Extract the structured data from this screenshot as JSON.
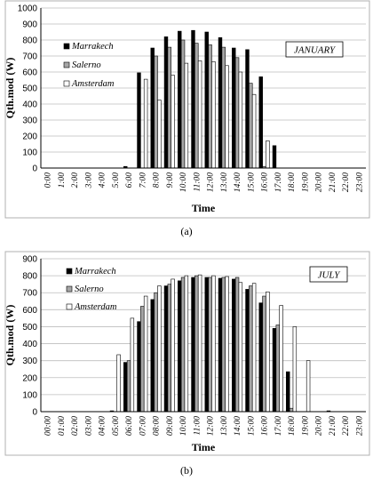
{
  "chart_data": [
    {
      "type": "bar",
      "ylabel": "Qth.mod (W)",
      "xlabel": "Time",
      "ylim": [
        0,
        1000
      ],
      "yticks": [
        0,
        100,
        200,
        300,
        400,
        500,
        600,
        700,
        800,
        900,
        1000
      ],
      "annotation": "JANUARY",
      "legend_position": "top-left",
      "caption": "(a)",
      "categories": [
        "0:00",
        "1:00",
        "2:00",
        "3:00",
        "4:00",
        "5:00",
        "6:00",
        "7:00",
        "8:00",
        "9:00",
        "10:00",
        "11:00",
        "12:00",
        "13:00",
        "14:00",
        "15:00",
        "16:00",
        "17:00",
        "18:00",
        "19:00",
        "20:00",
        "21:00",
        "22:00",
        "23:00"
      ],
      "series": [
        {
          "name": "Marrakech",
          "color": "#000000",
          "values": [
            0,
            0,
            0,
            0,
            0,
            0,
            10,
            595,
            750,
            820,
            855,
            860,
            850,
            815,
            750,
            740,
            570,
            140,
            0,
            0,
            0,
            0,
            0,
            0
          ]
        },
        {
          "name": "Salerno",
          "color": "#a6a6a6",
          "values": [
            0,
            0,
            0,
            0,
            0,
            0,
            0,
            0,
            700,
            755,
            800,
            780,
            770,
            755,
            690,
            530,
            10,
            0,
            0,
            0,
            0,
            0,
            0,
            0
          ]
        },
        {
          "name": "Amsterdam",
          "color": "#ffffff",
          "values": [
            0,
            0,
            0,
            0,
            0,
            0,
            0,
            555,
            425,
            580,
            655,
            670,
            665,
            640,
            600,
            460,
            170,
            0,
            0,
            0,
            0,
            0,
            0,
            0
          ]
        }
      ]
    },
    {
      "type": "bar",
      "ylabel": "Qth.mod (W)",
      "xlabel": "Time",
      "ylim": [
        0,
        900
      ],
      "yticks": [
        0,
        100,
        200,
        300,
        400,
        500,
        600,
        700,
        800,
        900
      ],
      "annotation": "JULY",
      "legend_position": "top-left",
      "caption": "(b)",
      "categories": [
        "00:00",
        "01:00",
        "02:00",
        "03:00",
        "04:00",
        "05:00",
        "06:00",
        "07:00",
        "08:00",
        "09:00",
        "10:00",
        "11:00",
        "12:00",
        "13:00",
        "14:00",
        "15:00",
        "16:00",
        "17:00",
        "18:00",
        "19:00",
        "20:00",
        "21:00",
        "22:00",
        "23:00"
      ],
      "series": [
        {
          "name": "Marrakech",
          "color": "#000000",
          "values": [
            0,
            0,
            0,
            0,
            0,
            5,
            290,
            530,
            660,
            740,
            770,
            790,
            790,
            785,
            780,
            720,
            640,
            490,
            235,
            0,
            0,
            5,
            0,
            0
          ]
        },
        {
          "name": "Salerno",
          "color": "#a6a6a6",
          "values": [
            0,
            0,
            0,
            0,
            0,
            0,
            300,
            620,
            700,
            750,
            790,
            800,
            790,
            790,
            790,
            740,
            680,
            510,
            20,
            0,
            0,
            0,
            0,
            0
          ]
        },
        {
          "name": "Amsterdam",
          "color": "#ffffff",
          "values": [
            0,
            0,
            0,
            0,
            0,
            335,
            550,
            680,
            740,
            780,
            800,
            805,
            800,
            795,
            760,
            755,
            705,
            625,
            500,
            300,
            0,
            0,
            0,
            0
          ]
        }
      ]
    }
  ]
}
